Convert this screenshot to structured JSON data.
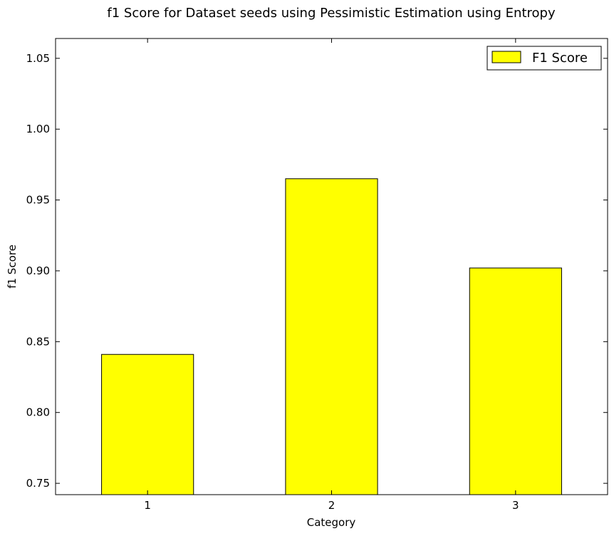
{
  "chart_data": {
    "type": "bar",
    "title": "f1 Score for Dataset seeds using Pessimistic Estimation using Entropy",
    "xlabel": "Category",
    "ylabel": "f1 Score",
    "categories": [
      "1",
      "2",
      "3"
    ],
    "series": [
      {
        "name": "F1 Score",
        "values": [
          0.841,
          0.965,
          0.902
        ],
        "color": "#ffff00"
      }
    ],
    "ylim": [
      0.742,
      1.064
    ],
    "yticks": [
      0.75,
      0.8,
      0.85,
      0.9,
      0.95,
      1.0,
      1.05
    ],
    "ytick_labels": [
      "0.75",
      "0.80",
      "0.85",
      "0.90",
      "0.95",
      "1.00",
      "1.05"
    ],
    "grid": false,
    "legend_position": "top-right",
    "bar_edge_color": "#000000"
  }
}
